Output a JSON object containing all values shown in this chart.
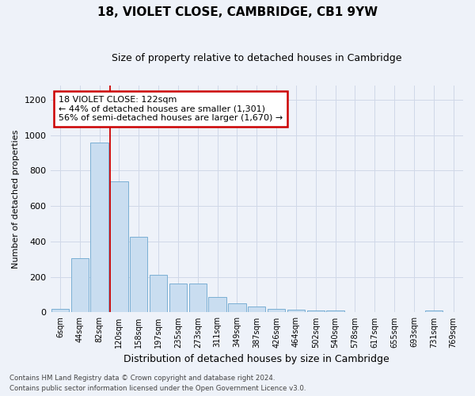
{
  "title": "18, VIOLET CLOSE, CAMBRIDGE, CB1 9YW",
  "subtitle": "Size of property relative to detached houses in Cambridge",
  "xlabel": "Distribution of detached houses by size in Cambridge",
  "ylabel": "Number of detached properties",
  "bar_color": "#c9ddf0",
  "bar_edge_color": "#7aafd4",
  "categories": [
    "6sqm",
    "44sqm",
    "82sqm",
    "120sqm",
    "158sqm",
    "197sqm",
    "235sqm",
    "273sqm",
    "311sqm",
    "349sqm",
    "387sqm",
    "426sqm",
    "464sqm",
    "502sqm",
    "540sqm",
    "578sqm",
    "617sqm",
    "655sqm",
    "693sqm",
    "731sqm",
    "769sqm"
  ],
  "values": [
    22,
    308,
    960,
    738,
    425,
    210,
    165,
    165,
    85,
    50,
    35,
    22,
    15,
    13,
    10,
    0,
    0,
    0,
    0,
    10,
    0
  ],
  "red_line_bar_index": 3,
  "annotation_text": "18 VIOLET CLOSE: 122sqm\n← 44% of detached houses are smaller (1,301)\n56% of semi-detached houses are larger (1,670) →",
  "annotation_box_color": "#ffffff",
  "annotation_box_edge_color": "#cc0000",
  "ylim": [
    0,
    1280
  ],
  "yticks": [
    0,
    200,
    400,
    600,
    800,
    1000,
    1200
  ],
  "footer1": "Contains HM Land Registry data © Crown copyright and database right 2024.",
  "footer2": "Contains public sector information licensed under the Open Government Licence v3.0.",
  "bg_color": "#eef2f9"
}
